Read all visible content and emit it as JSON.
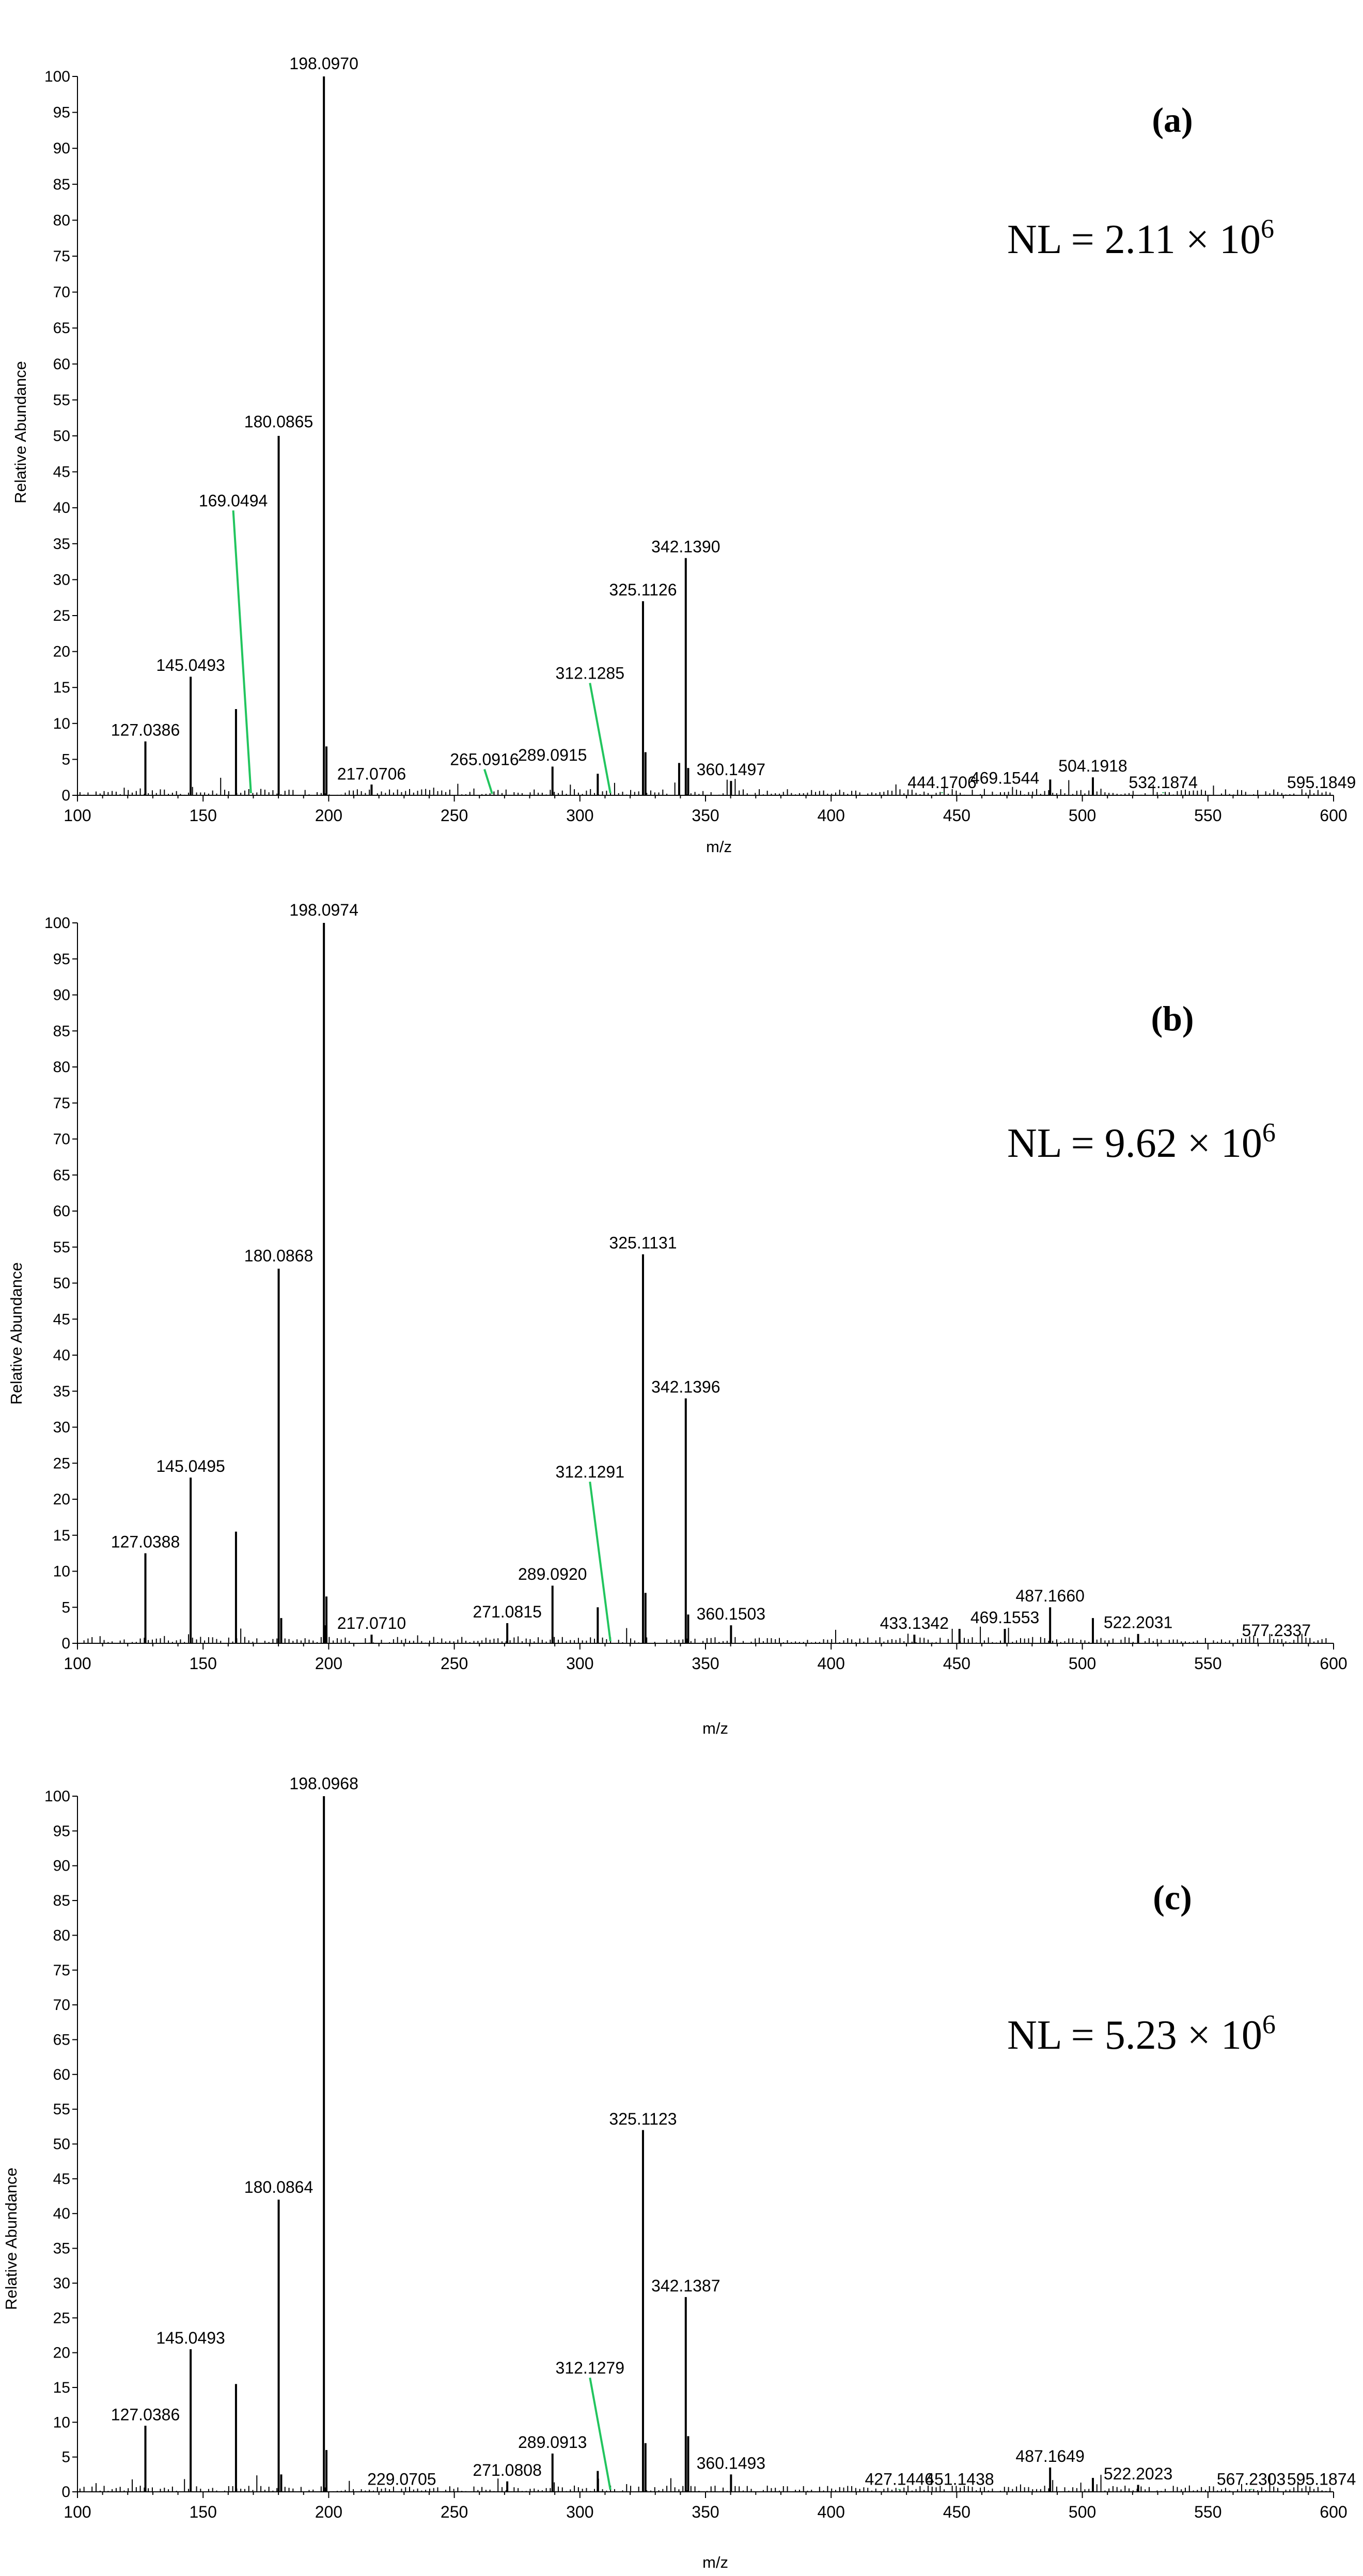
{
  "chart_data": [
    {
      "type": "bar",
      "panel_label": "(a)",
      "nl_text": "NL = 2.11 × 10",
      "nl_exp": "6",
      "xlabel": "m/z",
      "ylabel": "Relative Abundance",
      "xlim": [
        100,
        600
      ],
      "ylim": [
        0,
        100
      ],
      "x_ticks": [
        "100",
        "150",
        "200",
        "250",
        "300",
        "350",
        "400",
        "450",
        "500",
        "550",
        "600"
      ],
      "y_ticks": [
        "0",
        "5",
        "10",
        "15",
        "20",
        "25",
        "30",
        "35",
        "40",
        "45",
        "50",
        "55",
        "60",
        "65",
        "70",
        "75",
        "80",
        "85",
        "90",
        "95",
        "100"
      ],
      "peaks": [
        {
          "mz": 127.0386,
          "y": 7.5
        },
        {
          "mz": 145.0493,
          "y": 16.5
        },
        {
          "mz": 163.1,
          "y": 12.0
        },
        {
          "mz": 180.0865,
          "y": 50.0
        },
        {
          "mz": 198.097,
          "y": 100.0
        },
        {
          "mz": 199.1,
          "y": 6.8
        },
        {
          "mz": 217.0706,
          "y": 1.5
        },
        {
          "mz": 289.0915,
          "y": 4.0
        },
        {
          "mz": 307.1,
          "y": 3.0
        },
        {
          "mz": 325.1126,
          "y": 27.0
        },
        {
          "mz": 326.1,
          "y": 6.0
        },
        {
          "mz": 339.5,
          "y": 4.5
        },
        {
          "mz": 342.139,
          "y": 33.0
        },
        {
          "mz": 343.1,
          "y": 3.8
        },
        {
          "mz": 360.1497,
          "y": 2.0
        },
        {
          "mz": 487.2,
          "y": 2.2
        },
        {
          "mz": 504.1918,
          "y": 2.5
        }
      ],
      "labels": [
        {
          "mz": 127.0386,
          "text": "127.0386",
          "y": 8.3
        },
        {
          "mz": 145.0493,
          "text": "145.0493",
          "y": 17.3
        },
        {
          "mz": 169.0494,
          "text": "169.0494",
          "y": 40.2,
          "leader_to_y": 0.3,
          "line_mz": 162.0
        },
        {
          "mz": 180.0865,
          "text": "180.0865",
          "y": 51.2
        },
        {
          "mz": 198.097,
          "text": "198.0970",
          "y": 101.0
        },
        {
          "mz": 217.0706,
          "text": "217.0706",
          "y": 2.2
        },
        {
          "mz": 265.0916,
          "text": "265.0916",
          "y": 4.2,
          "leader_to_y": 0.2,
          "line_mz": 262.0
        },
        {
          "mz": 289.0915,
          "text": "289.0915",
          "y": 4.8
        },
        {
          "mz": 312.1285,
          "text": "312.1285",
          "y": 16.2,
          "leader_to_y": 0.3,
          "line_mz": 304.0
        },
        {
          "mz": 325.1126,
          "text": "325.1126",
          "y": 27.8
        },
        {
          "mz": 342.139,
          "text": "342.1390",
          "y": 33.8
        },
        {
          "mz": 360.1497,
          "text": "360.1497",
          "y": 2.8
        },
        {
          "mz": 444.1706,
          "text": "444.1706",
          "y": 1.0,
          "leader_to_y": 0.3,
          "line_mz": 444.1706
        },
        {
          "mz": 469.1544,
          "text": "469.1544",
          "y": 1.6
        },
        {
          "mz": 504.1918,
          "text": "504.1918",
          "y": 3.3
        },
        {
          "mz": 532.1874,
          "text": "532.1874",
          "y": 1.0,
          "leader_to_y": 0.3,
          "line_mz": 532.1874
        },
        {
          "mz": 595.1849,
          "text": "595.1849",
          "y": 1.0
        }
      ]
    },
    {
      "type": "bar",
      "panel_label": "(b)",
      "nl_text": "NL = 9.62 × 10",
      "nl_exp": "6",
      "xlabel": "m/z",
      "ylabel": "Relative Abundance",
      "xlim": [
        100,
        600
      ],
      "ylim": [
        0,
        100
      ],
      "x_ticks": [
        "100",
        "150",
        "200",
        "250",
        "300",
        "350",
        "400",
        "450",
        "500",
        "550",
        "600"
      ],
      "y_ticks": [
        "0",
        "5",
        "10",
        "15",
        "20",
        "25",
        "30",
        "35",
        "40",
        "45",
        "50",
        "55",
        "60",
        "65",
        "70",
        "75",
        "80",
        "85",
        "90",
        "95",
        "100"
      ],
      "peaks": [
        {
          "mz": 127.0388,
          "y": 12.5
        },
        {
          "mz": 145.0495,
          "y": 23.0
        },
        {
          "mz": 163.1,
          "y": 15.5
        },
        {
          "mz": 180.0868,
          "y": 52.0
        },
        {
          "mz": 181.1,
          "y": 3.5
        },
        {
          "mz": 198.0974,
          "y": 100.0
        },
        {
          "mz": 199.1,
          "y": 6.5
        },
        {
          "mz": 217.071,
          "y": 1.2
        },
        {
          "mz": 271.0815,
          "y": 2.8
        },
        {
          "mz": 289.092,
          "y": 8.0
        },
        {
          "mz": 307.1,
          "y": 5.0
        },
        {
          "mz": 325.1131,
          "y": 54.0
        },
        {
          "mz": 326.1,
          "y": 7.0
        },
        {
          "mz": 342.1396,
          "y": 34.0
        },
        {
          "mz": 343.1,
          "y": 4.0
        },
        {
          "mz": 360.1503,
          "y": 2.5
        },
        {
          "mz": 433.1342,
          "y": 1.2
        },
        {
          "mz": 451.1,
          "y": 2.0
        },
        {
          "mz": 469.1553,
          "y": 2.0
        },
        {
          "mz": 487.166,
          "y": 5.0
        },
        {
          "mz": 504.2,
          "y": 3.5
        },
        {
          "mz": 522.2031,
          "y": 1.3
        }
      ],
      "labels": [
        {
          "mz": 127.0388,
          "text": "127.0388",
          "y": 13.3
        },
        {
          "mz": 145.0495,
          "text": "145.0495",
          "y": 23.8
        },
        {
          "mz": 180.0868,
          "text": "180.0868",
          "y": 53.0
        },
        {
          "mz": 198.0974,
          "text": "198.0974",
          "y": 101.0
        },
        {
          "mz": 217.071,
          "text": "217.0710",
          "y": 2.0
        },
        {
          "mz": 271.0815,
          "text": "271.0815",
          "y": 3.6
        },
        {
          "mz": 289.092,
          "text": "289.0920",
          "y": 8.8
        },
        {
          "mz": 312.1291,
          "text": "312.1291",
          "y": 23.0,
          "leader_to_y": 0.3,
          "line_mz": 304.0
        },
        {
          "mz": 325.1131,
          "text": "325.1131",
          "y": 54.8
        },
        {
          "mz": 342.1396,
          "text": "342.1396",
          "y": 34.8
        },
        {
          "mz": 360.1503,
          "text": "360.1503",
          "y": 3.3
        },
        {
          "mz": 433.1342,
          "text": "433.1342",
          "y": 2.0
        },
        {
          "mz": 469.1553,
          "text": "469.1553",
          "y": 2.8
        },
        {
          "mz": 487.166,
          "text": "487.1660",
          "y": 5.8
        },
        {
          "mz": 522.2031,
          "text": "522.2031",
          "y": 2.1
        },
        {
          "mz": 577.2337,
          "text": "577.2337",
          "y": 1.0
        }
      ]
    },
    {
      "type": "bar",
      "panel_label": "(c)",
      "nl_text": "NL = 5.23 × 10",
      "nl_exp": "6",
      "xlabel": "m/z",
      "ylabel": "Relative Abundance",
      "xlim": [
        100,
        600
      ],
      "ylim": [
        0,
        100
      ],
      "x_ticks": [
        "100",
        "150",
        "200",
        "250",
        "300",
        "350",
        "400",
        "450",
        "500",
        "550",
        "600"
      ],
      "y_ticks": [
        "0",
        "5",
        "10",
        "15",
        "20",
        "25",
        "30",
        "35",
        "40",
        "45",
        "50",
        "55",
        "60",
        "65",
        "70",
        "75",
        "80",
        "85",
        "90",
        "95",
        "100"
      ],
      "peaks": [
        {
          "mz": 127.0386,
          "y": 9.5
        },
        {
          "mz": 145.0493,
          "y": 20.5
        },
        {
          "mz": 163.1,
          "y": 15.5
        },
        {
          "mz": 180.0864,
          "y": 42.0
        },
        {
          "mz": 181.1,
          "y": 2.5
        },
        {
          "mz": 198.0968,
          "y": 100.0
        },
        {
          "mz": 199.1,
          "y": 6.0
        },
        {
          "mz": 271.0808,
          "y": 1.5
        },
        {
          "mz": 289.0913,
          "y": 5.5
        },
        {
          "mz": 307.1,
          "y": 3.0
        },
        {
          "mz": 325.1123,
          "y": 52.0
        },
        {
          "mz": 326.1,
          "y": 7.0
        },
        {
          "mz": 342.1387,
          "y": 28.0
        },
        {
          "mz": 343.1,
          "y": 8.0
        },
        {
          "mz": 360.1493,
          "y": 2.5
        },
        {
          "mz": 487.1649,
          "y": 3.5
        },
        {
          "mz": 504.2,
          "y": 2.0
        },
        {
          "mz": 522.2023,
          "y": 1.0
        }
      ],
      "labels": [
        {
          "mz": 127.0386,
          "text": "127.0386",
          "y": 10.3
        },
        {
          "mz": 145.0493,
          "text": "145.0493",
          "y": 21.3
        },
        {
          "mz": 180.0864,
          "text": "180.0864",
          "y": 43.0
        },
        {
          "mz": 198.0968,
          "text": "198.0968",
          "y": 101.0
        },
        {
          "mz": 229.0705,
          "text": "229.0705",
          "y": 1.0
        },
        {
          "mz": 271.0808,
          "text": "271.0808",
          "y": 2.3
        },
        {
          "mz": 289.0913,
          "text": "289.0913",
          "y": 6.3
        },
        {
          "mz": 312.1279,
          "text": "312.1279",
          "y": 17.0,
          "leader_to_y": 0.3,
          "line_mz": 304.0
        },
        {
          "mz": 325.1123,
          "text": "325.1123",
          "y": 52.8
        },
        {
          "mz": 342.1387,
          "text": "342.1387",
          "y": 28.8
        },
        {
          "mz": 360.1493,
          "text": "360.1493",
          "y": 3.3
        },
        {
          "mz": 427.1446,
          "text": "427.1446",
          "y": 1.0,
          "leader_to_y": 0.3,
          "line_mz": 427.1446
        },
        {
          "mz": 451.1438,
          "text": "451.1438",
          "y": 1.0
        },
        {
          "mz": 487.1649,
          "text": "487.1649",
          "y": 4.3
        },
        {
          "mz": 522.2023,
          "text": "522.2023",
          "y": 1.8
        },
        {
          "mz": 567.2303,
          "text": "567.2303",
          "y": 1.0,
          "leader_to_y": 0.3,
          "line_mz": 567.2303
        },
        {
          "mz": 595.1874,
          "text": "595.1874",
          "y": 1.0
        }
      ]
    }
  ]
}
